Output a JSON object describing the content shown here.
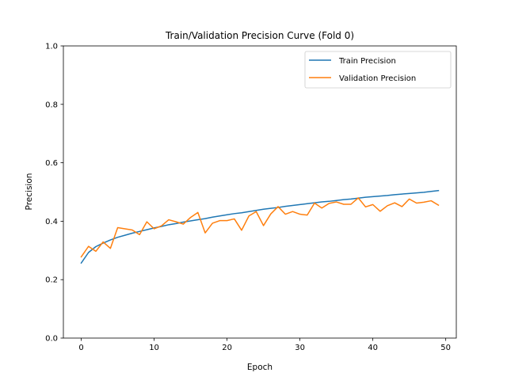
{
  "chart_data": {
    "type": "line",
    "title": "Train/Validation Precision Curve (Fold 0)",
    "xlabel": "Epoch",
    "ylabel": "Precision",
    "xlim": [
      -2.45,
      51.45
    ],
    "ylim": [
      0.0,
      1.0
    ],
    "x_ticks": [
      "0",
      "10",
      "20",
      "30",
      "40",
      "50"
    ],
    "y_ticks": [
      "0.0",
      "0.2",
      "0.4",
      "0.6",
      "0.8",
      "1.0"
    ],
    "grid": false,
    "legend_position": "top-right",
    "x": [
      0,
      1,
      2,
      3,
      4,
      5,
      6,
      7,
      8,
      9,
      10,
      11,
      12,
      13,
      14,
      15,
      16,
      17,
      18,
      19,
      20,
      21,
      22,
      23,
      24,
      25,
      26,
      27,
      28,
      29,
      30,
      31,
      32,
      33,
      34,
      35,
      36,
      37,
      38,
      39,
      40,
      41,
      42,
      43,
      44,
      45,
      46,
      47,
      48,
      49
    ],
    "series": [
      {
        "name": "Train Precision",
        "color": "#1f77b4",
        "values": [
          0.257,
          0.293,
          0.313,
          0.325,
          0.336,
          0.345,
          0.352,
          0.359,
          0.365,
          0.371,
          0.377,
          0.382,
          0.388,
          0.392,
          0.397,
          0.401,
          0.405,
          0.409,
          0.414,
          0.418,
          0.422,
          0.426,
          0.429,
          0.433,
          0.437,
          0.441,
          0.444,
          0.447,
          0.451,
          0.454,
          0.457,
          0.46,
          0.463,
          0.466,
          0.468,
          0.471,
          0.474,
          0.476,
          0.479,
          0.482,
          0.484,
          0.486,
          0.488,
          0.491,
          0.493,
          0.495,
          0.497,
          0.499,
          0.502,
          0.505
        ]
      },
      {
        "name": "Validation Precision",
        "color": "#ff7f0e",
        "values": [
          0.278,
          0.314,
          0.297,
          0.329,
          0.307,
          0.378,
          0.374,
          0.37,
          0.354,
          0.398,
          0.374,
          0.384,
          0.405,
          0.398,
          0.39,
          0.413,
          0.43,
          0.36,
          0.393,
          0.402,
          0.402,
          0.408,
          0.369,
          0.418,
          0.433,
          0.385,
          0.425,
          0.45,
          0.424,
          0.433,
          0.424,
          0.421,
          0.462,
          0.445,
          0.461,
          0.466,
          0.458,
          0.458,
          0.48,
          0.449,
          0.457,
          0.434,
          0.453,
          0.463,
          0.45,
          0.476,
          0.462,
          0.465,
          0.47,
          0.455
        ]
      }
    ]
  }
}
